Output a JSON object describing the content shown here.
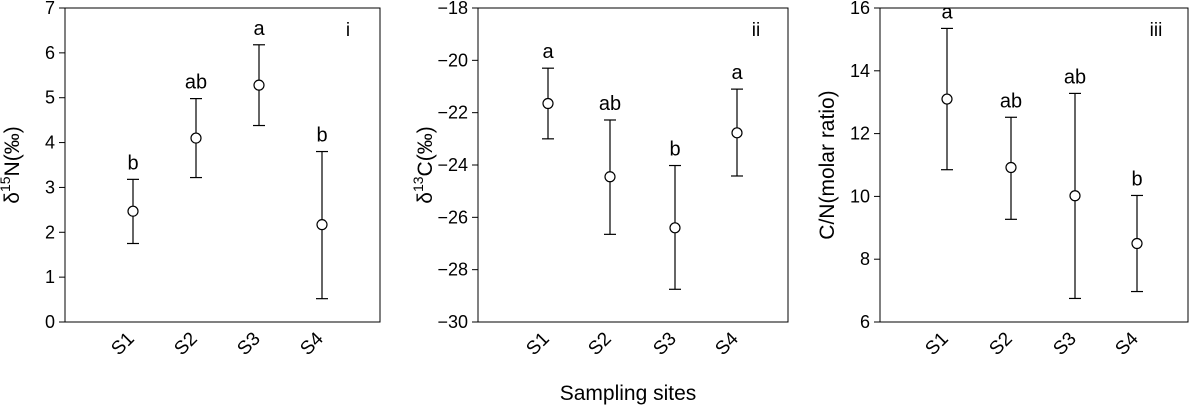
{
  "figure": {
    "xlabel": "Sampling sites"
  },
  "chart_data": [
    {
      "type": "scatter",
      "panel_label": "i",
      "title": "",
      "ylabel_prefix": "δ",
      "ylabel_sup": "15",
      "ylabel_suffix": "N(‰)",
      "ylim": [
        0,
        7
      ],
      "yticks": [
        0,
        1,
        2,
        3,
        4,
        5,
        6,
        7
      ],
      "categories": [
        "S1",
        "S2",
        "S3",
        "S4"
      ],
      "values": [
        2.47,
        4.1,
        5.28,
        2.17
      ],
      "error_low": [
        1.75,
        3.22,
        4.38,
        0.52
      ],
      "error_high": [
        3.18,
        4.98,
        6.18,
        3.8
      ],
      "letters": [
        "b",
        "ab",
        "a",
        "b"
      ],
      "grid": false
    },
    {
      "type": "scatter",
      "panel_label": "ii",
      "title": "",
      "ylabel_prefix": "δ",
      "ylabel_sup": "13",
      "ylabel_suffix": "C(‰)",
      "ylim": [
        -30,
        -18
      ],
      "yticks": [
        -30,
        -28,
        -26,
        -24,
        -22,
        -20,
        -18
      ],
      "categories": [
        "S1",
        "S2",
        "S3",
        "S4"
      ],
      "values": [
        -21.65,
        -24.45,
        -26.4,
        -22.77
      ],
      "error_low": [
        -23.0,
        -26.65,
        -28.75,
        -24.42
      ],
      "error_high": [
        -20.3,
        -22.28,
        -24.02,
        -21.1
      ],
      "letters": [
        "a",
        "ab",
        "b",
        "a"
      ],
      "grid": false
    },
    {
      "type": "scatter",
      "panel_label": "iii",
      "title": "",
      "ylabel_prefix": "",
      "ylabel_sup": "",
      "ylabel_suffix": "C/N(molar ratio)",
      "ylim": [
        6,
        16
      ],
      "yticks": [
        6,
        8,
        10,
        12,
        14,
        16
      ],
      "categories": [
        "S1",
        "S2",
        "S3",
        "S4"
      ],
      "values": [
        13.1,
        10.92,
        10.02,
        8.5
      ],
      "error_low": [
        10.85,
        9.27,
        6.75,
        6.97
      ],
      "error_high": [
        15.35,
        12.52,
        13.28,
        10.03
      ],
      "letters": [
        "a",
        "ab",
        "ab",
        "b"
      ],
      "grid": false
    }
  ]
}
